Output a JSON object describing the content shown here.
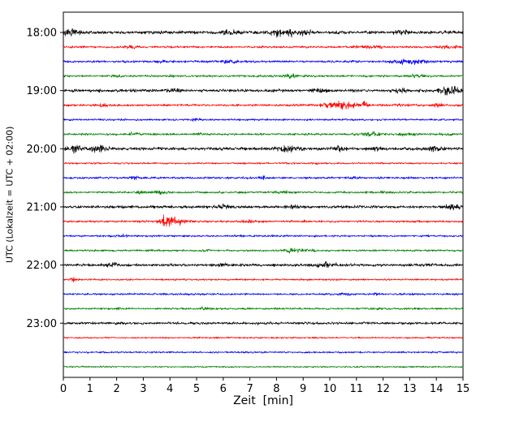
{
  "chart_data": {
    "type": "line",
    "subtype": "helicorder-seismogram",
    "title": "",
    "xlabel": "Zeit  [min]",
    "ylabel": "UTC (Lokalzeit = UTC + 02:00)",
    "xlim": [
      0,
      15
    ],
    "x_ticks": [
      0,
      1,
      2,
      3,
      4,
      5,
      6,
      7,
      8,
      9,
      10,
      11,
      12,
      13,
      14,
      15
    ],
    "y_tick_labels": [
      "18:00",
      "19:00",
      "20:00",
      "21:00",
      "22:00",
      "23:00"
    ],
    "grid": false,
    "legend": "none",
    "minutes_per_line": 15,
    "colors": {
      "black": "#000000",
      "red": "#ff0000",
      "blue": "#0000ff",
      "green": "#008000"
    },
    "traces": [
      {
        "time": "18:00",
        "color": "#000000",
        "amp": 1.8,
        "events": [
          {
            "x": 0.3,
            "s": 2.5,
            "w": 0.25
          },
          {
            "x": 6.2,
            "s": 2.2,
            "w": 0.15
          },
          {
            "x": 8.3,
            "s": 3.2,
            "w": 0.35
          },
          {
            "x": 9.0,
            "s": 2.0,
            "w": 0.2
          },
          {
            "x": 12.8,
            "s": 2.2,
            "w": 0.2
          }
        ]
      },
      {
        "time": "18:15",
        "color": "#ff0000",
        "amp": 1.2,
        "events": [
          {
            "x": 2.5,
            "s": 2.5,
            "w": 0.12
          },
          {
            "x": 11.5,
            "s": 2.2,
            "w": 0.3
          },
          {
            "x": 14.4,
            "s": 2.0,
            "w": 0.25
          }
        ]
      },
      {
        "time": "18:30",
        "color": "#0000ff",
        "amp": 1.3,
        "events": [
          {
            "x": 3.6,
            "s": 2.0,
            "w": 0.15
          },
          {
            "x": 6.3,
            "s": 2.2,
            "w": 0.2
          },
          {
            "x": 13.0,
            "s": 2.8,
            "w": 0.4
          }
        ]
      },
      {
        "time": "18:45",
        "color": "#008000",
        "amp": 1.2,
        "events": [
          {
            "x": 2.0,
            "s": 2.0,
            "w": 0.12
          },
          {
            "x": 4.1,
            "s": 1.8,
            "w": 0.1
          },
          {
            "x": 8.6,
            "s": 2.2,
            "w": 0.25
          },
          {
            "x": 13.3,
            "s": 2.4,
            "w": 0.2
          }
        ]
      },
      {
        "time": "19:00",
        "color": "#000000",
        "amp": 1.7,
        "events": [
          {
            "x": 4.2,
            "s": 2.0,
            "w": 0.2
          },
          {
            "x": 9.6,
            "s": 1.8,
            "w": 0.2
          },
          {
            "x": 12.6,
            "s": 2.0,
            "w": 0.2
          },
          {
            "x": 14.5,
            "s": 3.0,
            "w": 0.3
          }
        ]
      },
      {
        "time": "19:15",
        "color": "#ff0000",
        "amp": 1.3,
        "events": [
          {
            "x": 1.5,
            "s": 2.2,
            "w": 0.15
          },
          {
            "x": 10.4,
            "s": 3.5,
            "w": 0.45
          },
          {
            "x": 11.3,
            "s": 3.0,
            "w": 0.1
          },
          {
            "x": 12.8,
            "s": 2.0,
            "w": 0.2
          },
          {
            "x": 14.1,
            "s": 2.2,
            "w": 0.15
          }
        ]
      },
      {
        "time": "19:30",
        "color": "#0000ff",
        "amp": 1.1,
        "events": [
          {
            "x": 5.0,
            "s": 1.5,
            "w": 0.15
          }
        ]
      },
      {
        "time": "19:45",
        "color": "#008000",
        "amp": 1.2,
        "events": [
          {
            "x": 2.6,
            "s": 2.0,
            "w": 0.15
          },
          {
            "x": 5.2,
            "s": 1.8,
            "w": 0.15
          },
          {
            "x": 11.5,
            "s": 2.5,
            "w": 0.3
          },
          {
            "x": 12.9,
            "s": 2.2,
            "w": 0.2
          },
          {
            "x": 14.3,
            "s": 1.8,
            "w": 0.15
          }
        ]
      },
      {
        "time": "20:00",
        "color": "#000000",
        "amp": 1.8,
        "events": [
          {
            "x": 0.4,
            "s": 2.5,
            "w": 0.2
          },
          {
            "x": 1.3,
            "s": 2.8,
            "w": 0.25
          },
          {
            "x": 8.4,
            "s": 2.5,
            "w": 0.3
          },
          {
            "x": 10.4,
            "s": 2.0,
            "w": 0.2
          },
          {
            "x": 11.7,
            "s": 1.8,
            "w": 0.15
          },
          {
            "x": 13.9,
            "s": 2.2,
            "w": 0.2
          }
        ]
      },
      {
        "time": "20:15",
        "color": "#ff0000",
        "amp": 1.0,
        "events": [
          {
            "x": 7.4,
            "s": 1.6,
            "w": 0.12
          },
          {
            "x": 9.4,
            "s": 1.5,
            "w": 0.1
          }
        ]
      },
      {
        "time": "20:30",
        "color": "#0000ff",
        "amp": 1.2,
        "events": [
          {
            "x": 2.6,
            "s": 2.0,
            "w": 0.15
          },
          {
            "x": 7.5,
            "s": 1.8,
            "w": 0.15
          },
          {
            "x": 10.9,
            "s": 2.0,
            "w": 0.15
          }
        ]
      },
      {
        "time": "20:45",
        "color": "#008000",
        "amp": 1.2,
        "events": [
          {
            "x": 2.9,
            "s": 2.2,
            "w": 0.12
          },
          {
            "x": 3.6,
            "s": 2.5,
            "w": 0.18
          },
          {
            "x": 8.3,
            "s": 2.0,
            "w": 0.2
          },
          {
            "x": 12.1,
            "s": 1.6,
            "w": 0.12
          }
        ]
      },
      {
        "time": "21:00",
        "color": "#000000",
        "amp": 1.6,
        "events": [
          {
            "x": 6.0,
            "s": 2.8,
            "w": 0.12
          },
          {
            "x": 8.6,
            "s": 1.8,
            "w": 0.15
          },
          {
            "x": 14.6,
            "s": 2.2,
            "w": 0.2
          }
        ]
      },
      {
        "time": "21:15",
        "color": "#ff0000",
        "amp": 1.2,
        "events": [
          {
            "x": 3.9,
            "s": 7.0,
            "w": 0.18
          },
          {
            "x": 4.3,
            "s": 3.0,
            "w": 0.3
          },
          {
            "x": 6.9,
            "s": 2.2,
            "w": 0.15
          },
          {
            "x": 9.0,
            "s": 1.6,
            "w": 0.1
          }
        ]
      },
      {
        "time": "21:30",
        "color": "#0000ff",
        "amp": 1.1,
        "events": [
          {
            "x": 2.3,
            "s": 2.0,
            "w": 0.12
          },
          {
            "x": 6.6,
            "s": 1.8,
            "w": 0.12
          }
        ]
      },
      {
        "time": "21:45",
        "color": "#008000",
        "amp": 1.1,
        "events": [
          {
            "x": 5.4,
            "s": 2.0,
            "w": 0.15
          },
          {
            "x": 8.6,
            "s": 2.6,
            "w": 0.3
          },
          {
            "x": 9.3,
            "s": 1.8,
            "w": 0.15
          }
        ]
      },
      {
        "time": "22:00",
        "color": "#000000",
        "amp": 1.6,
        "events": [
          {
            "x": 1.8,
            "s": 2.4,
            "w": 0.15
          },
          {
            "x": 6.1,
            "s": 1.8,
            "w": 0.15
          },
          {
            "x": 9.8,
            "s": 2.6,
            "w": 0.3
          },
          {
            "x": 13.7,
            "s": 2.0,
            "w": 0.15
          }
        ]
      },
      {
        "time": "22:15",
        "color": "#ff0000",
        "amp": 1.0,
        "events": [
          {
            "x": 0.4,
            "s": 3.0,
            "w": 0.1
          }
        ]
      },
      {
        "time": "22:30",
        "color": "#0000ff",
        "amp": 1.1,
        "events": [
          {
            "x": 10.6,
            "s": 2.0,
            "w": 0.15
          },
          {
            "x": 11.8,
            "s": 1.8,
            "w": 0.12
          }
        ]
      },
      {
        "time": "22:45",
        "color": "#008000",
        "amp": 1.1,
        "events": [
          {
            "x": 2.1,
            "s": 1.8,
            "w": 0.12
          },
          {
            "x": 5.3,
            "s": 2.2,
            "w": 0.18
          },
          {
            "x": 11.8,
            "s": 1.8,
            "w": 0.12
          }
        ]
      },
      {
        "time": "23:00",
        "color": "#000000",
        "amp": 1.4,
        "events": []
      },
      {
        "time": "23:15",
        "color": "#ff0000",
        "amp": 0.9,
        "events": []
      },
      {
        "time": "23:30",
        "color": "#0000ff",
        "amp": 1.0,
        "events": [
          {
            "x": 14.8,
            "s": 1.6,
            "w": 0.1
          }
        ]
      },
      {
        "time": "23:45",
        "color": "#008000",
        "amp": 0.9,
        "events": []
      }
    ]
  }
}
